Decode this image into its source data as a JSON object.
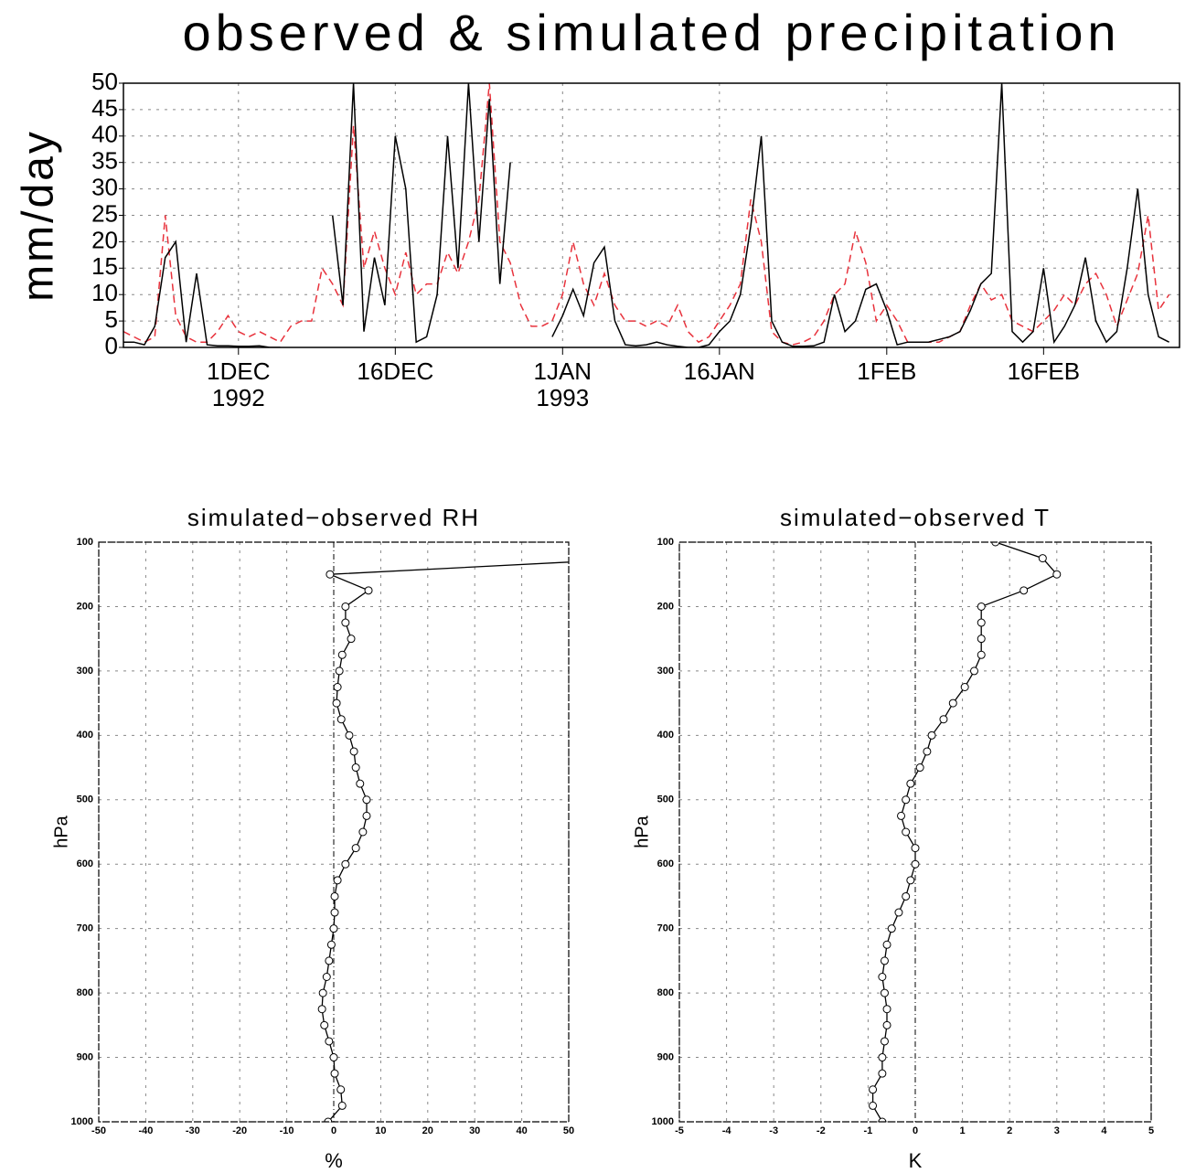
{
  "chart_data": [
    {
      "type": "line",
      "title": "observed & simulated precipitation",
      "ylabel": "mm/day",
      "xlim": [
        "1992-11-20",
        "1993-03-01"
      ],
      "ylim": [
        0,
        50
      ],
      "yticks": [
        0,
        5,
        10,
        15,
        20,
        25,
        30,
        35,
        40,
        45,
        50
      ],
      "grid": true,
      "xticks": [
        {
          "value": "1992-12-01",
          "label": "1DEC"
        },
        {
          "value": "1992-12-16",
          "label": "16DEC"
        },
        {
          "value": "1993-01-01",
          "label": "1JAN"
        },
        {
          "value": "1993-01-16",
          "label": "16JAN"
        },
        {
          "value": "1993-02-01",
          "label": "1FEB"
        },
        {
          "value": "1993-02-16",
          "label": "16FEB"
        }
      ],
      "xtick_years": [
        {
          "value": "1992-12-01",
          "label": "1992"
        },
        {
          "value": "1993-01-01",
          "label": "1993"
        }
      ],
      "x": [
        "1992-11-20",
        "1992-11-21",
        "1992-11-22",
        "1992-11-23",
        "1992-11-24",
        "1992-11-25",
        "1992-11-26",
        "1992-11-27",
        "1992-11-28",
        "1992-11-29",
        "1992-11-30",
        "1992-12-01",
        "1992-12-02",
        "1992-12-03",
        "1992-12-04",
        "1992-12-05",
        "1992-12-06",
        "1992-12-07",
        "1992-12-08",
        "1992-12-09",
        "1992-12-10",
        "1992-12-11",
        "1992-12-12",
        "1992-12-13",
        "1992-12-14",
        "1992-12-15",
        "1992-12-16",
        "1992-12-17",
        "1992-12-18",
        "1992-12-19",
        "1992-12-20",
        "1992-12-21",
        "1992-12-22",
        "1992-12-23",
        "1992-12-24",
        "1992-12-25",
        "1992-12-26",
        "1992-12-27",
        "1992-12-28",
        "1992-12-29",
        "1992-12-30",
        "1992-12-31",
        "1993-01-01",
        "1993-01-02",
        "1993-01-03",
        "1993-01-04",
        "1993-01-05",
        "1993-01-06",
        "1993-01-07",
        "1993-01-08",
        "1993-01-09",
        "1993-01-10",
        "1993-01-11",
        "1993-01-12",
        "1993-01-13",
        "1993-01-14",
        "1993-01-15",
        "1993-01-16",
        "1993-01-17",
        "1993-01-18",
        "1993-01-19",
        "1993-01-20",
        "1993-01-21",
        "1993-01-22",
        "1993-01-23",
        "1993-01-24",
        "1993-01-25",
        "1993-01-26",
        "1993-01-27",
        "1993-01-28",
        "1993-01-29",
        "1993-01-30",
        "1993-01-31",
        "1993-02-01",
        "1993-02-02",
        "1993-02-03",
        "1993-02-04",
        "1993-02-05",
        "1993-02-06",
        "1993-02-07",
        "1993-02-08",
        "1993-02-09",
        "1993-02-10",
        "1993-02-11",
        "1993-02-12",
        "1993-02-13",
        "1993-02-14",
        "1993-02-15",
        "1993-02-16",
        "1993-02-17",
        "1993-02-18",
        "1993-02-19",
        "1993-02-20",
        "1993-02-21",
        "1993-02-22",
        "1993-02-23",
        "1993-02-24",
        "1993-02-25",
        "1993-02-26",
        "1993-02-27",
        "1993-02-28"
      ],
      "series": [
        {
          "color": "#e8323c",
          "dashed": true,
          "values": [
            3,
            2,
            1,
            2,
            25,
            6,
            2,
            1,
            1,
            3,
            6,
            3,
            2,
            3,
            2,
            1,
            4,
            5,
            5,
            15,
            12,
            8,
            42,
            15,
            22,
            15,
            10,
            18,
            10,
            12,
            12,
            18,
            14,
            20,
            28,
            50,
            20,
            16,
            8,
            4,
            4,
            5,
            10,
            20,
            12,
            8,
            14,
            8,
            5,
            5,
            4,
            5,
            4,
            8,
            3,
            1,
            2,
            5,
            8,
            12,
            28,
            20,
            3,
            1,
            0.5,
            1,
            2,
            5,
            10,
            12,
            22,
            16,
            5,
            8,
            5,
            1,
            1,
            1,
            1,
            2,
            3,
            8,
            12,
            9,
            10,
            5,
            4,
            3,
            5,
            7,
            10,
            8,
            12,
            14,
            10,
            4,
            9,
            14,
            25,
            7,
            10
          ]
        },
        {
          "color": "#000000",
          "dashed": false,
          "values": [
            1,
            1,
            0.5,
            4,
            17,
            20,
            1,
            14,
            0.5,
            0.3,
            0.3,
            0.2,
            0.2,
            0.3,
            0,
            0,
            null,
            null,
            1,
            null,
            25,
            8,
            50,
            3,
            17,
            8,
            40,
            30,
            1,
            2,
            10,
            40,
            15,
            50,
            20,
            47,
            12,
            35,
            null,
            null,
            null,
            2,
            6,
            11,
            6,
            16,
            19,
            5,
            0.5,
            0.3,
            0.5,
            1,
            0.5,
            0.2,
            0,
            0,
            0.5,
            3,
            5,
            10,
            23,
            40,
            5,
            1,
            0.2,
            0.2,
            0.3,
            1,
            10,
            3,
            5,
            11,
            12,
            7,
            0.5,
            1,
            1,
            1,
            1.5,
            2,
            3,
            7,
            12,
            14,
            50,
            3,
            1,
            3,
            15,
            1,
            4,
            8,
            17,
            5,
            1,
            3,
            15,
            30,
            10,
            2,
            1
          ]
        }
      ]
    },
    {
      "type": "profile",
      "title": "simulated−observed RH",
      "xlabel": "%",
      "ylabel": "hPa",
      "xlim": [
        -50,
        50
      ],
      "xticks": [
        -50,
        -40,
        -30,
        -20,
        -10,
        0,
        10,
        20,
        30,
        40,
        50
      ],
      "ylim": [
        1000,
        100
      ],
      "yticks": [
        100,
        200,
        300,
        400,
        500,
        600,
        700,
        800,
        900,
        1000
      ],
      "grid": true,
      "color": "#000000",
      "levels": [
        1000,
        975,
        950,
        925,
        900,
        875,
        850,
        825,
        800,
        775,
        750,
        725,
        700,
        675,
        650,
        625,
        600,
        575,
        550,
        525,
        500,
        475,
        450,
        425,
        400,
        375,
        350,
        325,
        300,
        275,
        250,
        225,
        200,
        175,
        150,
        125
      ],
      "values": [
        -1.2,
        1.8,
        1.5,
        0.2,
        0,
        -1,
        -2,
        -2.5,
        -2.3,
        -1.5,
        -1,
        -0.5,
        0,
        0.2,
        0.2,
        0.8,
        2.5,
        4.7,
        6.2,
        7,
        7,
        5.6,
        4.7,
        4.3,
        3.3,
        1.6,
        0.6,
        0.8,
        1.2,
        1.8,
        3.7,
        2.5,
        2.5,
        7.4,
        -0.8,
        66
      ]
    },
    {
      "type": "profile",
      "title": "simulated−observed T",
      "xlabel": "K",
      "ylabel": "hPa",
      "xlim": [
        -5,
        5
      ],
      "xticks": [
        -5,
        -4,
        -3,
        -2,
        -1,
        0,
        1,
        2,
        3,
        4,
        5
      ],
      "ylim": [
        1000,
        100
      ],
      "yticks": [
        100,
        200,
        300,
        400,
        500,
        600,
        700,
        800,
        900,
        1000
      ],
      "grid": true,
      "color": "#000000",
      "levels": [
        1000,
        975,
        950,
        925,
        900,
        875,
        850,
        825,
        800,
        775,
        750,
        725,
        700,
        675,
        650,
        625,
        600,
        575,
        550,
        525,
        500,
        475,
        450,
        425,
        400,
        375,
        350,
        325,
        300,
        275,
        250,
        225,
        200,
        175,
        150,
        125,
        100
      ],
      "values": [
        -0.7,
        -0.9,
        -0.9,
        -0.7,
        -0.7,
        -0.65,
        -0.6,
        -0.6,
        -0.65,
        -0.7,
        -0.65,
        -0.6,
        -0.5,
        -0.35,
        -0.2,
        -0.1,
        0,
        0,
        -0.2,
        -0.3,
        -0.2,
        -0.1,
        0.1,
        0.25,
        0.35,
        0.6,
        0.8,
        1.05,
        1.25,
        1.4,
        1.4,
        1.4,
        1.4,
        2.3,
        3.0,
        2.7,
        1.7
      ]
    }
  ]
}
